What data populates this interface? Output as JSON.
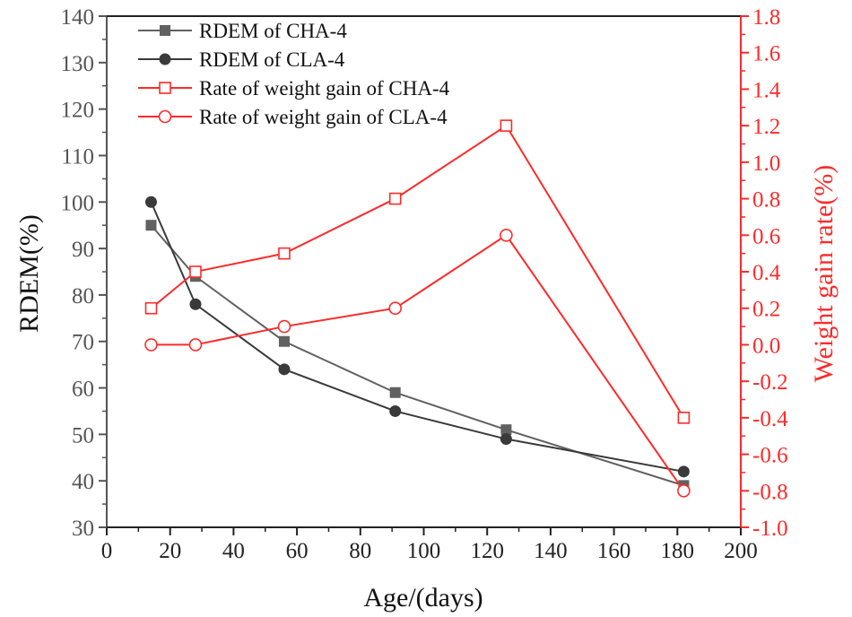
{
  "chart_data": {
    "type": "line",
    "title": "",
    "xlabel": "Age/(days)",
    "ylabel": "RDEM(%)",
    "y2label": "Weight gain rate(%)",
    "xlim": [
      0,
      200
    ],
    "ylim": [
      30,
      140
    ],
    "y2lim": [
      -1.0,
      1.8
    ],
    "xticks": [
      "0",
      "20",
      "40",
      "60",
      "80",
      "100",
      "120",
      "140",
      "160",
      "180",
      "200"
    ],
    "yticks": [
      "30",
      "40",
      "50",
      "60",
      "70",
      "80",
      "90",
      "100",
      "110",
      "120",
      "130",
      "140"
    ],
    "y2ticks": [
      "-1.0",
      "-0.8",
      "-0.6",
      "-0.4",
      "-0.2",
      "0.0",
      "0.2",
      "0.4",
      "0.6",
      "0.8",
      "1.0",
      "1.2",
      "1.4",
      "1.6",
      "1.8"
    ],
    "grid": false,
    "legend_position": "top-left",
    "series": [
      {
        "name": "RDEM of CHA-4",
        "axis": "left",
        "marker": "filled-square",
        "color": "#616161",
        "x": [
          14,
          28,
          56,
          91,
          126,
          182
        ],
        "values": [
          95,
          84,
          70,
          59,
          51,
          39
        ]
      },
      {
        "name": "RDEM of CLA-4",
        "axis": "left",
        "marker": "filled-circle",
        "color": "#3a3a3a",
        "x": [
          14,
          28,
          56,
          91,
          126,
          182
        ],
        "values": [
          100,
          78,
          64,
          55,
          49,
          42
        ]
      },
      {
        "name": "Rate of weight gain of CHA-4",
        "axis": "right",
        "marker": "open-square",
        "color": "#ff2a2a",
        "x": [
          14,
          28,
          56,
          91,
          126,
          182
        ],
        "values": [
          0.2,
          0.4,
          0.5,
          0.8,
          1.2,
          -0.4
        ]
      },
      {
        "name": "Rate of weight gain of CLA-4",
        "axis": "right",
        "marker": "open-circle",
        "color": "#ff2a2a",
        "x": [
          14,
          28,
          56,
          91,
          126,
          182
        ],
        "values": [
          0.0,
          0.0,
          0.1,
          0.2,
          0.6,
          -0.8
        ]
      }
    ]
  }
}
